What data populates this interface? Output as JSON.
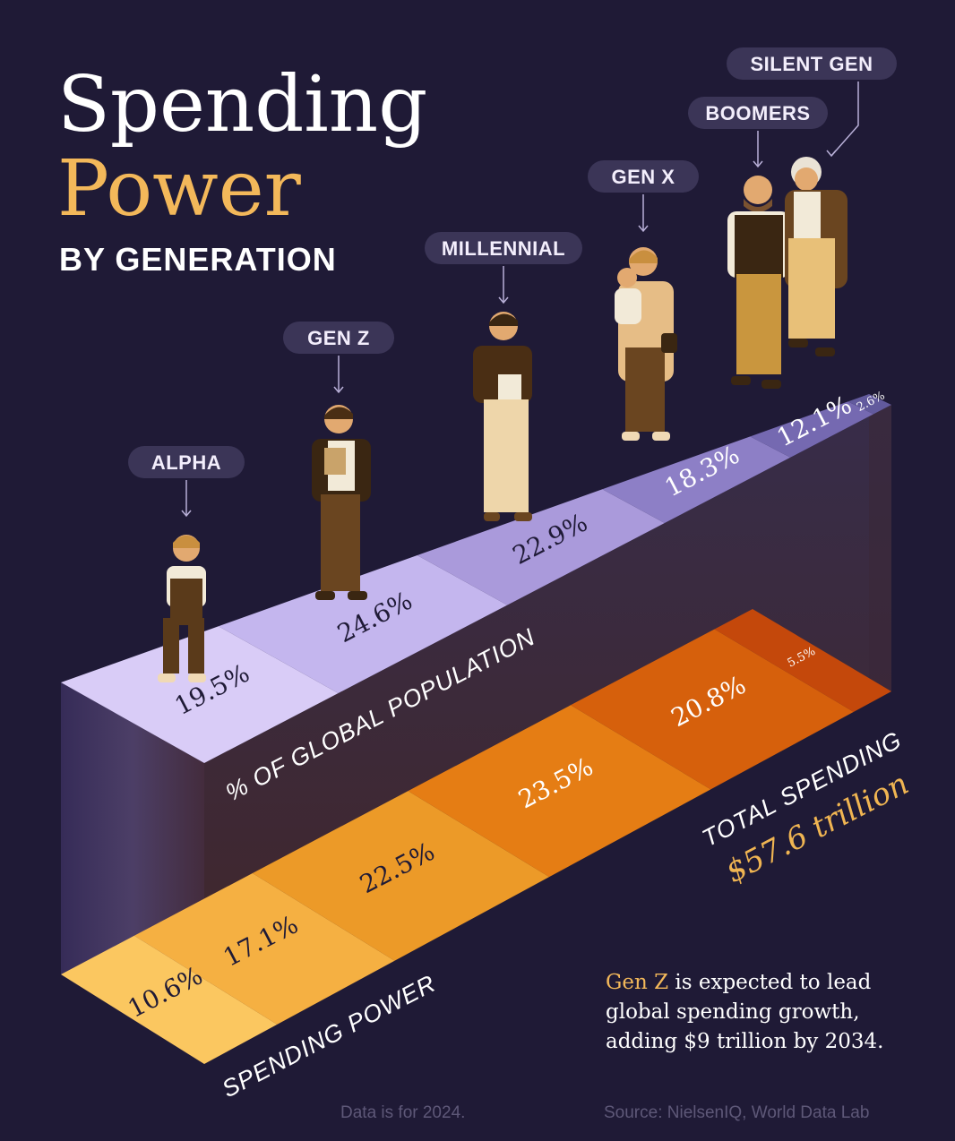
{
  "title": {
    "line1": "Spending",
    "line2": "Power",
    "line3": "BY GENERATION"
  },
  "chart_data": {
    "type": "bar",
    "categories": [
      "ALPHA",
      "GEN Z",
      "MILLENNIAL",
      "GEN X",
      "BOOMERS",
      "SILENT GEN"
    ],
    "series": [
      {
        "name": "% OF GLOBAL POPULATION",
        "values": [
          19.5,
          24.6,
          22.9,
          18.3,
          12.1,
          2.6
        ],
        "labels": [
          "19.5%",
          "24.6%",
          "22.9%",
          "18.3%",
          "12.1%",
          "2.6%"
        ]
      },
      {
        "name": "SPENDING POWER",
        "values": [
          10.6,
          17.1,
          22.5,
          23.5,
          20.8,
          5.5
        ],
        "labels": [
          "10.6%",
          "17.1%",
          "22.5%",
          "23.5%",
          "20.8%",
          "5.5%"
        ]
      }
    ],
    "total_label": "TOTAL SPENDING",
    "total_value": "$57.6 trillion"
  },
  "note": {
    "highlight": "Gen Z",
    "line1_rest": " is expected to lead",
    "line2": "global spending growth,",
    "line3": "adding $9 trillion by 2034."
  },
  "footer": {
    "data_year": "Data is for 2024.",
    "source": "Source: NielsenIQ, World Data Lab"
  },
  "colors": {
    "background": "#1f1a36",
    "title_accent": "#f3b85a",
    "population_top": [
      "#d9ccf7",
      "#c4b6ee",
      "#aa9adb",
      "#8d7fc6",
      "#7569b1",
      "#625a9d"
    ],
    "spending_bottom": [
      "#fbc760",
      "#f5b042",
      "#ec9a28",
      "#e57d14",
      "#d6600c",
      "#c4480b"
    ],
    "total_accent": "#f0b552"
  }
}
